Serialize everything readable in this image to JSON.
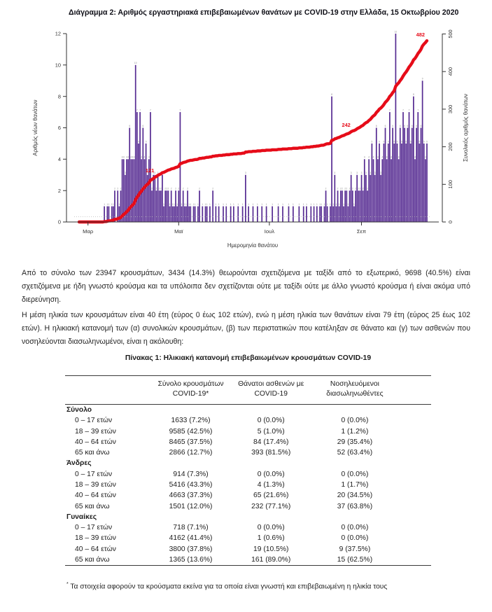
{
  "page": {
    "title": "Διάγραμμα 2: Αριθμός εργαστηριακά επιβεβαιωμένων θανάτων με COVID-19 στην Ελλάδα, 15 Οκτωβρίου 2020"
  },
  "chart_data": {
    "type": "bar",
    "title": "Διάγραμμα 2: Αριθμός εργαστηριακά επιβεβαιωμένων θανάτων με COVID-19 στην Ελλάδα, 15 Οκτωβρίου 2020",
    "xlabel": "Ημερομηνία θανάτου",
    "ylabel_left": "Αριθμός νέων θανάτων",
    "ylabel_right": "Συνολικός αριθμός θανάτων",
    "ylim_left": [
      0,
      12
    ],
    "ylim_right": [
      0,
      500
    ],
    "yticks_left": [
      0,
      2,
      4,
      6,
      8,
      10,
      12
    ],
    "yticks_right": [
      0,
      100,
      200,
      300,
      400,
      500
    ],
    "x_ticks": [
      {
        "label": "Μαρ",
        "day": 6
      },
      {
        "label": "Μαϊ",
        "day": 67
      },
      {
        "label": "Ιουλ",
        "day": 128
      },
      {
        "label": "Σεπ",
        "day": 190
      }
    ],
    "start_date_note": "daily series from late Feb to 15 Oct 2020",
    "daily_new_deaths": [
      0,
      0,
      0,
      0,
      0,
      0,
      0,
      0,
      0,
      0,
      0,
      0,
      0,
      0,
      0,
      0,
      0,
      1,
      0,
      1,
      1,
      0,
      1,
      1,
      2,
      0,
      2,
      1,
      2,
      4,
      4,
      3,
      4,
      4,
      6,
      4,
      4,
      4,
      10,
      7,
      5,
      7,
      4,
      6,
      4,
      5,
      3,
      4,
      7,
      2,
      3,
      3,
      2,
      3,
      2,
      2,
      3,
      1,
      2,
      2,
      2,
      1,
      2,
      1,
      1,
      2,
      1,
      2,
      7,
      1,
      2,
      1,
      1,
      2,
      1,
      1,
      0,
      1,
      1,
      0,
      1,
      2,
      0,
      1,
      0,
      1,
      1,
      0,
      1,
      0,
      2,
      0,
      1,
      0,
      1,
      0,
      0,
      1,
      0,
      1,
      0,
      0,
      1,
      0,
      1,
      0,
      0,
      1,
      0,
      0,
      1,
      0,
      3,
      0,
      1,
      0,
      0,
      1,
      0,
      0,
      1,
      0,
      0,
      1,
      0,
      0,
      1,
      0,
      0,
      0,
      1,
      0,
      0,
      0,
      1,
      0,
      0,
      1,
      0,
      0,
      0,
      1,
      0,
      0,
      1,
      0,
      0,
      0,
      1,
      0,
      0,
      1,
      0,
      1,
      0,
      0,
      1,
      0,
      1,
      0,
      1,
      0,
      1,
      1,
      0,
      1,
      2,
      1,
      0,
      1,
      8,
      1,
      3,
      1,
      2,
      1,
      2,
      2,
      1,
      2,
      2,
      1,
      2,
      3,
      2,
      1,
      2,
      3,
      2,
      2,
      3,
      2,
      4,
      3,
      2,
      4,
      3,
      5,
      4,
      3,
      6,
      4,
      5,
      3,
      4,
      5,
      6,
      4,
      5,
      7,
      4,
      6,
      5,
      12,
      5,
      4,
      6,
      5,
      7,
      6,
      5,
      6,
      7,
      5,
      6,
      8,
      4,
      6,
      7,
      5,
      6,
      9,
      5,
      4,
      5
    ],
    "cumulative_milestone_labels": [
      121,
      242,
      482
    ],
    "total_deaths": 482,
    "bar_color": "#552a91",
    "line_color": "#e60c19",
    "legend_position": "none",
    "grid": false
  },
  "paragraphs": {
    "p1": "Από το σύνολο των 23947 κρουσμάτων, 3434 (14.3%) θεωρούνται σχετιζόμενα με ταξίδι από το εξωτερικό, 9698 (40.5%) είναι σχετιζόμενα με ήδη γνωστό κρούσμα και τα υπόλοιπα δεν σχετίζονται ούτε με ταξίδι ούτε με άλλο γνωστό κρούσμα ή είναι ακόμα υπό διερεύνηση.",
    "p2": "Η μέση ηλικία των κρουσμάτων είναι 40 έτη (εύρος 0 έως 102 ετών), ενώ η μέση ηλικία των θανάτων είναι 79 έτη (εύρος 25 έως 102 ετών). Η ηλικιακή κατανομή των (α) συνολικών κρουσμάτων, (β) των περιστατικών που κατέληξαν σε θάνατο και (γ) των ασθενών που νοσηλεύονται διασωληνωμένοι, είναι η ακόλουθη:"
  },
  "table": {
    "title": "Πίνακας 1: Ηλικιακή κατανομή επιβεβαιωμένων κρουσμάτων COVID-19",
    "columns": [
      "",
      "Σύνολο κρουσμάτων COVID-19*",
      "Θάνατοι ασθενών με COVID-19",
      "Νοσηλευόμενοι διασωληνωθέντες"
    ],
    "sections": [
      {
        "name": "Σύνολο",
        "rows": [
          [
            "0 – 17 ετών",
            "1633 (7.2%)",
            "0 (0.0%)",
            "0 (0.0%)"
          ],
          [
            "18 – 39 ετών",
            "9585 (42.5%)",
            "5 (1.0%)",
            "1 (1.2%)"
          ],
          [
            "40 – 64 ετών",
            "8465 (37.5%)",
            "84 (17.4%)",
            "29 (35.4%)"
          ],
          [
            "65 και άνω",
            "2866 (12.7%)",
            "393 (81.5%)",
            "52 (63.4%)"
          ]
        ]
      },
      {
        "name": "Άνδρες",
        "rows": [
          [
            "0 – 17 ετών",
            "914 (7.3%)",
            "0 (0.0%)",
            "0 (0.0%)"
          ],
          [
            "18 – 39 ετών",
            "5416 (43.3%)",
            "4 (1.3%)",
            "1 (1.7%)"
          ],
          [
            "40 – 64 ετών",
            "4663 (37.3%)",
            "65 (21.6%)",
            "20 (34.5%)"
          ],
          [
            "65 και άνω",
            "1501 (12.0%)",
            "232 (77.1%)",
            "37 (63.8%)"
          ]
        ]
      },
      {
        "name": "Γυναίκες",
        "rows": [
          [
            "0 – 17 ετών",
            "718 (7.1%)",
            "0 (0.0%)",
            "0 (0.0%)"
          ],
          [
            "18 – 39 ετών",
            "4162 (41.4%)",
            "1 (0.6%)",
            "0 (0.0%)"
          ],
          [
            "40 – 64 ετών",
            "3800 (37.8%)",
            "19 (10.5%)",
            "9 (37.5%)"
          ],
          [
            "65 και άνω",
            "1365 (13.6%)",
            "161 (89.0%)",
            "15 (62.5%)"
          ]
        ]
      }
    ],
    "footnote": "Τα στοιχεία αφορούν τα κρούσματα εκείνα για τα οποία είναι γνωστή και επιβεβαιωμένη η ηλικία τους"
  }
}
